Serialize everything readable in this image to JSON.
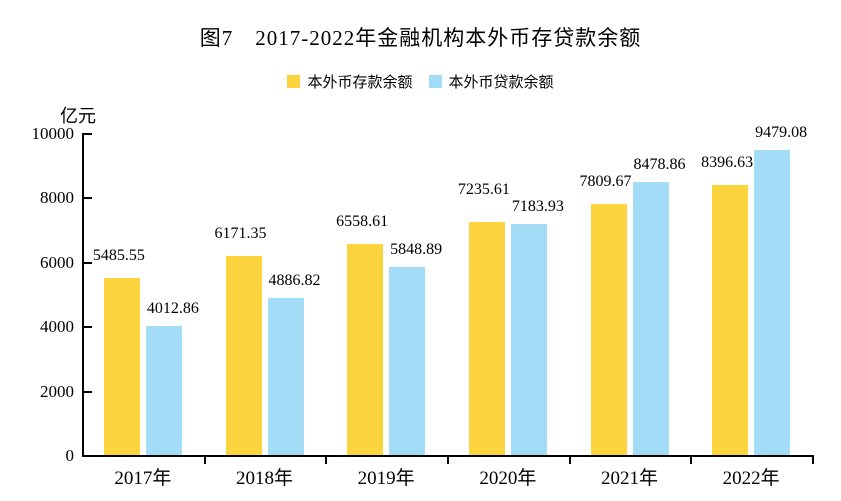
{
  "figure": {
    "title": "图7　2017-2022年金融机构本外币存贷款余额",
    "y_axis_unit": "亿元"
  },
  "chart_data": {
    "type": "bar",
    "title": "图7　2017-2022年金融机构本外币存贷款余额",
    "ylabel": "亿元",
    "xlabel": "",
    "categories": [
      "2017年",
      "2018年",
      "2019年",
      "2020年",
      "2021年",
      "2022年"
    ],
    "series": [
      {
        "name": "本外币存款余额",
        "color": "#FCD53E",
        "values": [
          5485.55,
          6171.35,
          6558.61,
          7235.61,
          7809.67,
          8396.63
        ]
      },
      {
        "name": "本外币贷款余额",
        "color": "#A3DCF7",
        "values": [
          4012.86,
          4886.82,
          5848.89,
          7183.93,
          8478.86,
          9479.08
        ]
      }
    ],
    "ylim": [
      0,
      10000
    ],
    "yticks": [
      0,
      2000,
      4000,
      6000,
      8000,
      10000
    ],
    "grid": false,
    "legend_position": "top",
    "data_labels": true,
    "axis_color": "#000000",
    "text_color": "#000000",
    "background": "#FFFFFF"
  }
}
